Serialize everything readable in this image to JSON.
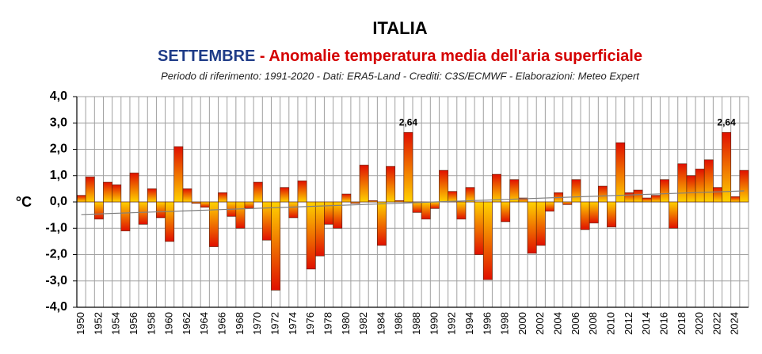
{
  "chart_data": {
    "type": "bar",
    "title": "ITALIA",
    "subtitle_month": "SETTEMBRE",
    "subtitle": "- Anomalie temperatura media dell'aria superficiale",
    "note": "Periodo di riferimento: 1991-2020 - Dati: ERA5-Land - Crediti: C3S/ECMWF - Elaborazioni: Meteo Expert",
    "y_label": "°C",
    "categories": [
      "1950",
      null,
      "1952",
      null,
      "1954",
      null,
      "1956",
      null,
      "1958",
      null,
      "1960",
      null,
      "1962",
      null,
      "1964",
      null,
      "1966",
      null,
      "1968",
      null,
      "1970",
      null,
      "1972",
      null,
      "1974",
      null,
      "1976",
      null,
      "1978",
      null,
      "1980",
      null,
      "1982",
      null,
      "1984",
      null,
      "1986",
      null,
      "1988",
      null,
      "1990",
      null,
      "1992",
      null,
      "1994",
      null,
      "1996",
      null,
      "1998",
      null,
      "2000",
      null,
      "2002",
      null,
      "2004",
      null,
      "2006",
      null,
      "2008",
      null,
      "2010",
      null,
      "2012",
      null,
      "2014",
      null,
      "2016",
      null,
      "2018",
      null,
      "2020",
      null,
      "2022",
      null,
      "2024",
      null
    ],
    "values": [
      0.25,
      0.95,
      -0.65,
      0.75,
      0.65,
      -1.1,
      1.1,
      -0.85,
      0.5,
      -0.6,
      -1.5,
      2.1,
      0.5,
      -0.05,
      -0.2,
      -1.7,
      0.35,
      -0.55,
      -1.0,
      -0.25,
      0.75,
      -1.45,
      -3.35,
      0.55,
      -0.6,
      0.8,
      -2.55,
      -2.05,
      -0.85,
      -1.0,
      0.3,
      -0.05,
      1.4,
      0.05,
      -1.65,
      1.35,
      0.05,
      2.64,
      -0.4,
      -0.65,
      -0.25,
      1.2,
      0.4,
      -0.65,
      0.55,
      -2.0,
      -2.95,
      1.05,
      -0.75,
      0.85,
      0.15,
      -1.95,
      -1.65,
      -0.35,
      0.35,
      -0.1,
      0.85,
      -1.05,
      -0.8,
      0.6,
      -0.95,
      2.25,
      0.35,
      0.45,
      0.15,
      0.25,
      0.85,
      -1.0,
      1.45,
      1.0,
      1.25,
      1.6,
      0.55,
      2.64,
      0.2,
      1.2
    ],
    "value_labels": [
      null,
      null,
      null,
      null,
      null,
      null,
      null,
      null,
      null,
      null,
      null,
      null,
      null,
      null,
      null,
      null,
      null,
      null,
      null,
      null,
      null,
      null,
      null,
      null,
      null,
      null,
      null,
      null,
      null,
      null,
      null,
      null,
      null,
      null,
      null,
      null,
      null,
      "2,64",
      null,
      null,
      null,
      null,
      null,
      null,
      null,
      null,
      null,
      null,
      null,
      null,
      null,
      null,
      null,
      null,
      null,
      null,
      null,
      null,
      null,
      null,
      null,
      null,
      null,
      null,
      null,
      null,
      null,
      null,
      null,
      null,
      null,
      null,
      null,
      "2,64",
      null,
      null
    ],
    "trend": {
      "start": -0.48,
      "end": 0.42,
      "color": "#808080"
    },
    "colors": {
      "far": "#e01000",
      "near": "#ffd200"
    },
    "ylim": [
      -4,
      4
    ],
    "yticks": [
      {
        "value": -4,
        "label": "-4,0"
      },
      {
        "value": -3,
        "label": "-3,0"
      },
      {
        "value": -2,
        "label": "-2,0"
      },
      {
        "value": -1,
        "label": "-1,0"
      },
      {
        "value": 0,
        "label": "0,0"
      },
      {
        "value": 1,
        "label": "1,0"
      },
      {
        "value": 2,
        "label": "2,0"
      },
      {
        "value": 3,
        "label": "3,0"
      },
      {
        "value": 4,
        "label": "4,0"
      }
    ],
    "grid": true
  }
}
